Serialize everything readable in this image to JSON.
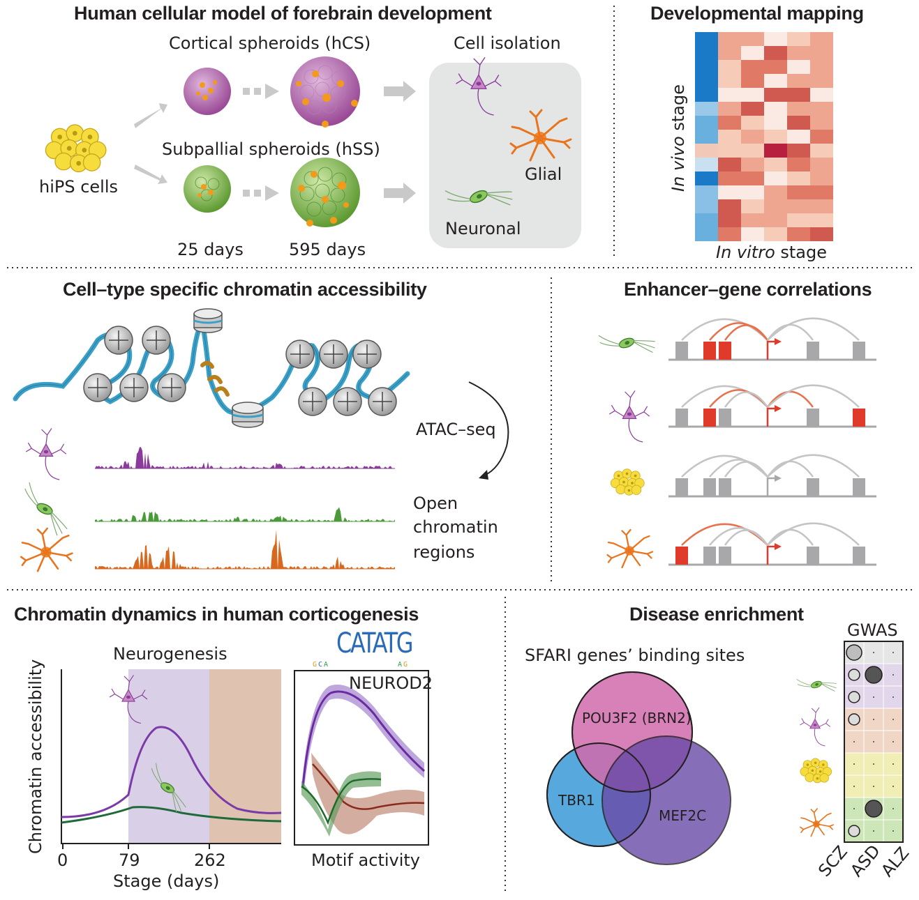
{
  "panels": {
    "model": {
      "title": "Human cellular model of forebrain development",
      "cortical": "Cortical spheroids (hCS)",
      "subpallial": "Subpallial spheroids (hSS)",
      "hips": "hiPS cells",
      "day_early": "25 days",
      "day_late": "595 days",
      "isolation": "Cell isolation",
      "glial": "Glial",
      "neuronal": "Neuronal"
    },
    "mapping": {
      "title": "Developmental mapping",
      "ylabel_italic": "In vivo",
      "ylabel_rest": " stage",
      "xlabel_italic": "In vitro",
      "xlabel_rest": " stage"
    },
    "chromatin": {
      "title": "Cell–type specific chromatin accessibility",
      "atac": "ATAC–seq",
      "open1": "Open",
      "open2": "chromatin",
      "open3": "regions"
    },
    "enhancer": {
      "title": "Enhancer–gene correlations"
    },
    "dynamics": {
      "title": "Chromatin dynamics in human corticogenesis",
      "neurogenesis": "Neurogenesis",
      "ylabel": "Chromatin accessibility",
      "xlabel": "Stage (days)",
      "ticks": [
        "0",
        "79",
        "262"
      ],
      "motif_name": "NEUROD2",
      "motif_seq": "CATATG",
      "motif_label": "Motif activity"
    },
    "disease": {
      "title": "Disease enrichment",
      "sfari": "SFARI genes’ binding sites",
      "venn_a": "POU3F2 (BRN2)",
      "venn_b": "TBR1",
      "venn_c": "MEF2C",
      "gwas": "GWAS",
      "cols": [
        "SCZ",
        "ASD",
        "ALZ"
      ]
    }
  },
  "colors": {
    "purple": "#8a3a9a",
    "green": "#4a9a3a",
    "orange": "#d8681e",
    "yellow": "#f2d21e",
    "blue": "#2a8ec8",
    "red": "#e03a2a",
    "gray": "#a8a8aa"
  }
}
